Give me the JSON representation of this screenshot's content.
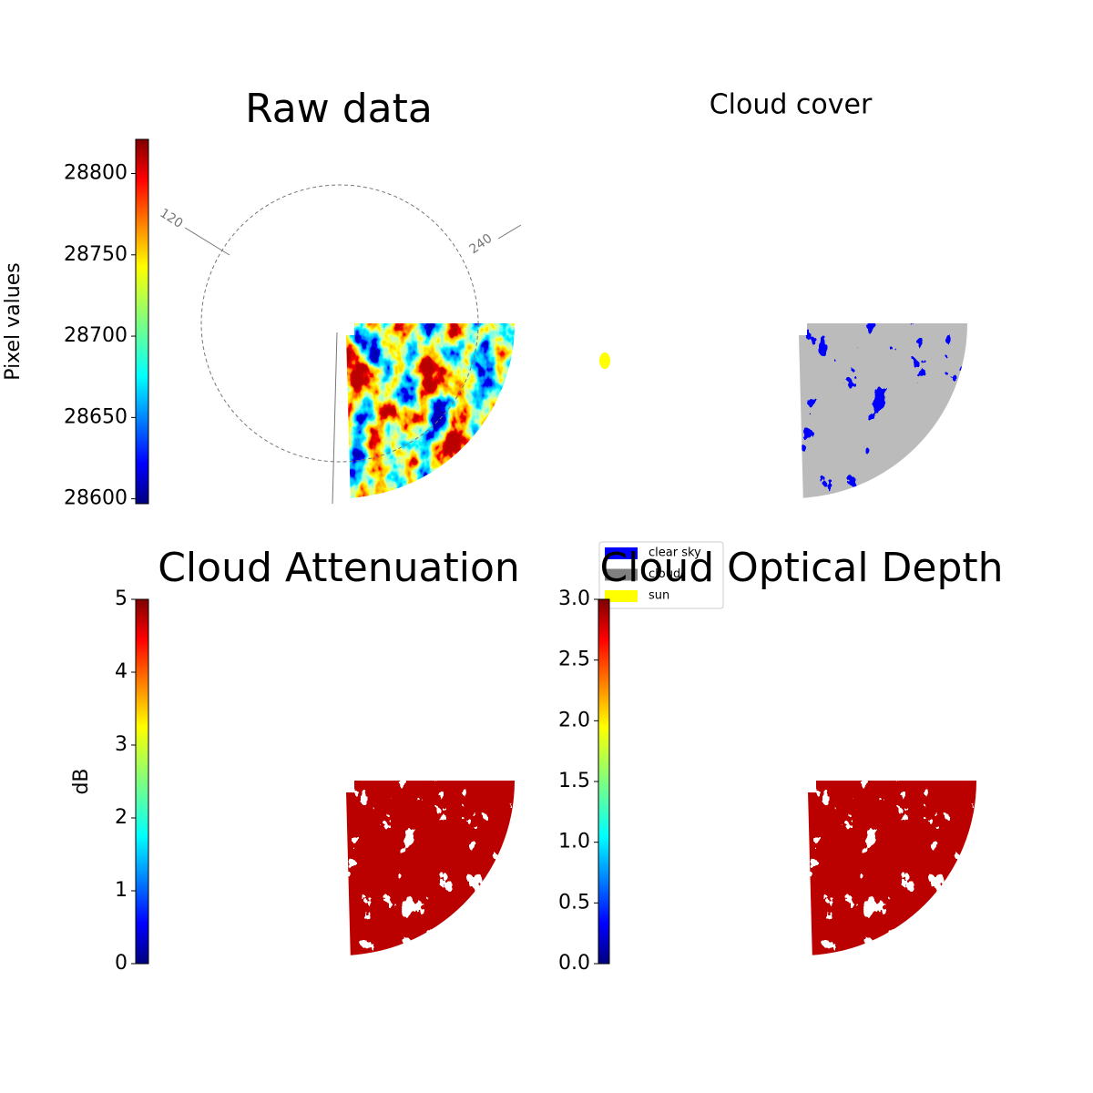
{
  "chart_data": [
    {
      "type": "image",
      "title": "Raw data",
      "colormap": "jet",
      "colorbar": {
        "label": "Pixel values",
        "ylim": [
          28597,
          28821
        ],
        "yticks": [
          28600,
          28650,
          28700,
          28750,
          28800
        ]
      },
      "annotations": [
        "120",
        "240"
      ]
    },
    {
      "type": "image",
      "title": "Cloud cover",
      "colormap": "classes",
      "legend": [
        {
          "name": "clear sky",
          "color": "#0000ff"
        },
        {
          "name": "cloud",
          "color": "#808080"
        },
        {
          "name": "sun",
          "color": "#ffff00"
        }
      ]
    },
    {
      "type": "image",
      "title": "Cloud Attenuation",
      "colormap": "jet",
      "colorbar": {
        "label": "dB",
        "ylim": [
          0,
          5
        ],
        "yticks": [
          0,
          1,
          2,
          3,
          4,
          5
        ]
      }
    },
    {
      "type": "image",
      "title": "Cloud Optical Depth",
      "colormap": "jet",
      "colorbar": {
        "ylim": [
          0,
          3
        ],
        "yticks": [
          {
            "value": 0,
            "label": "0.0"
          },
          0.5,
          {
            "value": 1,
            "label": "1.0"
          },
          1.5,
          {
            "value": 2,
            "label": "2.0"
          },
          2.5,
          {
            "value": 3,
            "label": "3.0"
          }
        ]
      }
    }
  ]
}
